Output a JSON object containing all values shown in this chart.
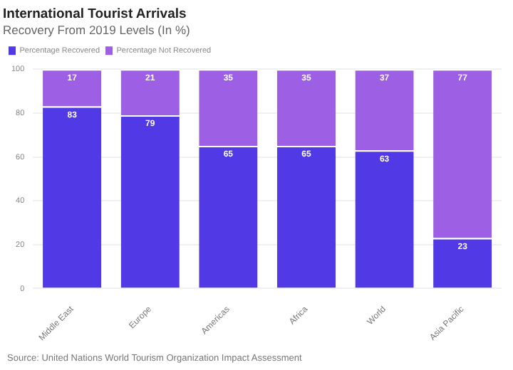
{
  "chart_data": {
    "type": "bar",
    "title": "International Tourist Arrivals",
    "subtitle": "Recovery From 2019 Levels (In %)",
    "categories": [
      "Middle East",
      "Europe",
      "Americas",
      "Africa",
      "World",
      "Asia Pacific"
    ],
    "series": [
      {
        "name": "Percentage Recovered",
        "color": "#5139e6",
        "values": [
          83,
          79,
          65,
          65,
          63,
          23
        ]
      },
      {
        "name": "Percentage Not Recovered",
        "color": "#9d5fe3",
        "values": [
          17,
          21,
          35,
          35,
          37,
          77
        ]
      }
    ],
    "stacked": true,
    "data_labels": true,
    "ylim": [
      0,
      100
    ],
    "yticks": [
      0,
      20,
      40,
      60,
      80,
      100
    ],
    "grid": "y",
    "legend": "top left",
    "annotations": [
      "Source: United Nations World Tourism Organization Impact Assessment"
    ]
  }
}
